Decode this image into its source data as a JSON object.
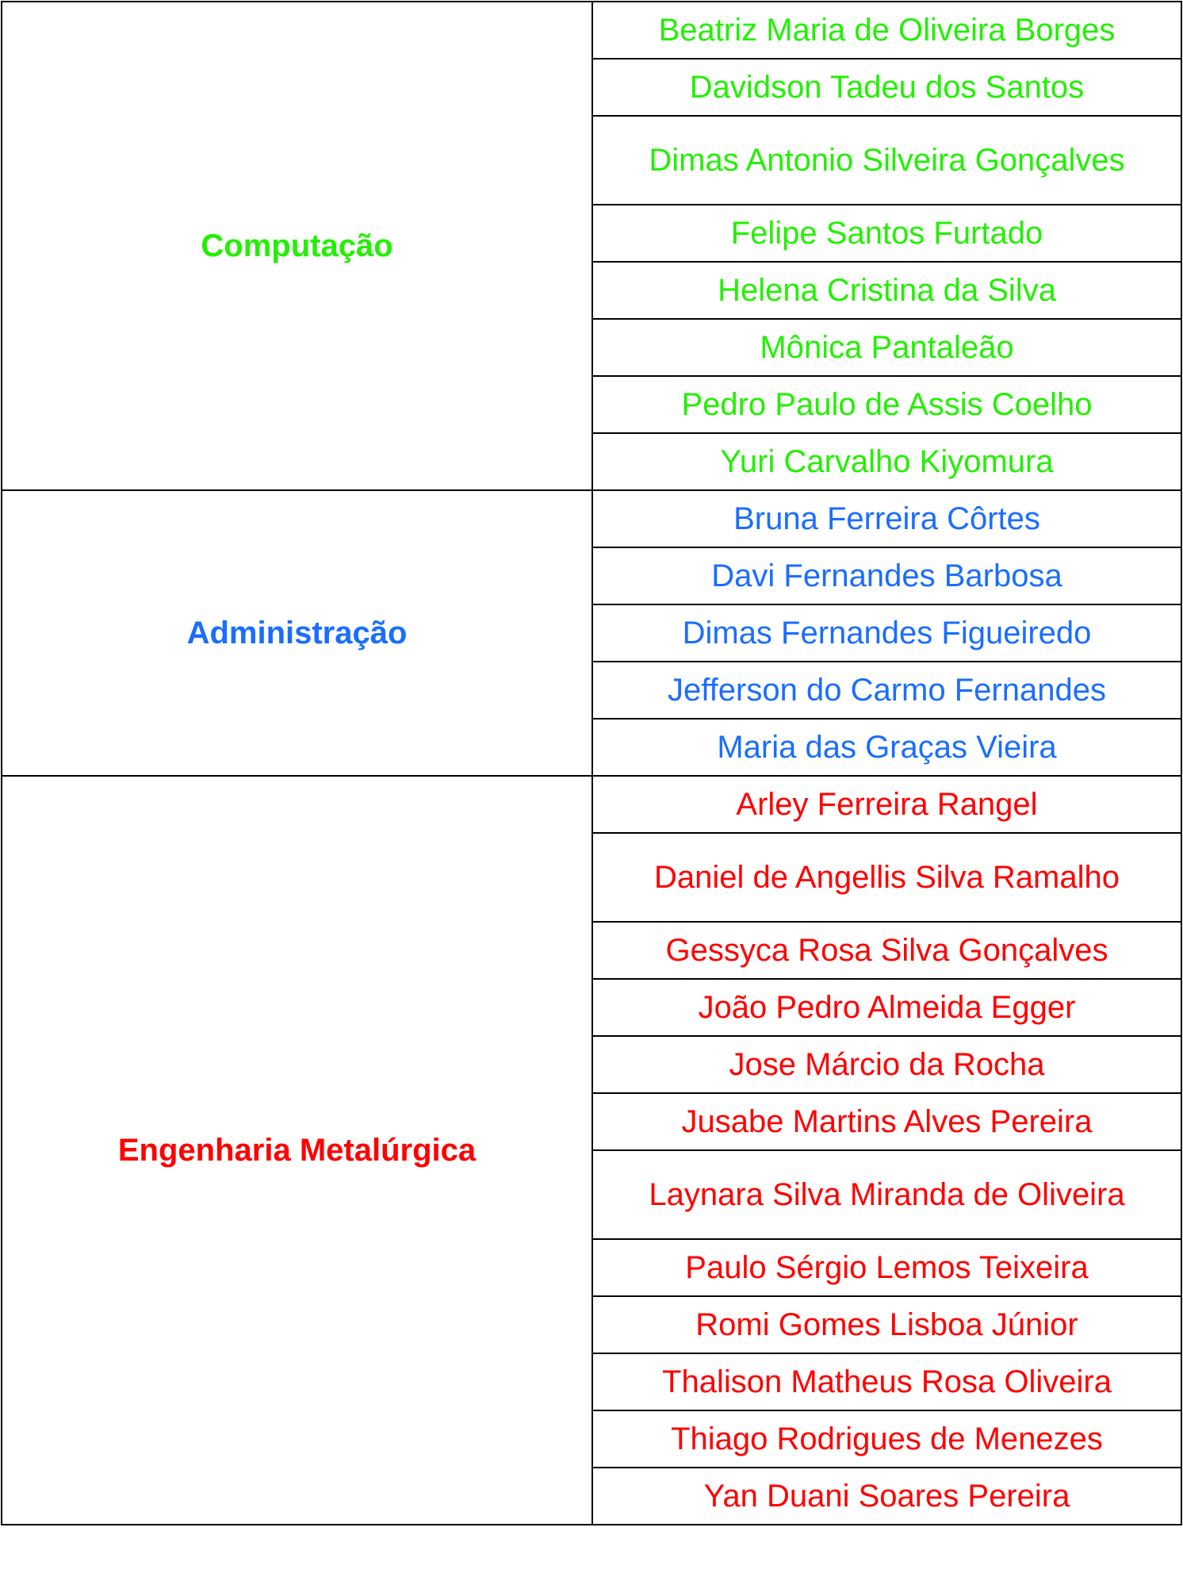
{
  "colors": {
    "Computação": "#22f000",
    "Administração": "#1a6dff",
    "Engenharia Metalúrgica": "#ff0000"
  },
  "groups": [
    {
      "name": "Computação",
      "color": "#22f000",
      "members": [
        "Beatriz Maria de Oliveira Borges",
        "Davidson Tadeu dos Santos",
        "Dimas Antonio Silveira Gonçalves",
        "Felipe Santos Furtado",
        "Helena Cristina da Silva",
        "Mônica Pantaleão",
        "Pedro Paulo de Assis Coelho",
        "Yuri Carvalho Kiyomura"
      ]
    },
    {
      "name": "Administração",
      "color": "#1a6dff",
      "members": [
        "Bruna Ferreira Côrtes",
        "Davi Fernandes Barbosa",
        "Dimas Fernandes Figueiredo",
        "Jefferson do Carmo Fernandes",
        "Maria das Graças Vieira"
      ]
    },
    {
      "name": "Engenharia Metalúrgica",
      "color": "#ff0000",
      "members": [
        "Arley Ferreira Rangel",
        "Daniel de Angellis Silva Ramalho",
        "Gessyca Rosa Silva Gonçalves",
        "João Pedro Almeida Egger",
        "Jose Márcio da Rocha",
        "Jusabe Martins Alves Pereira",
        "Laynara Silva Miranda de Oliveira",
        "Paulo Sérgio Lemos Teixeira",
        "Romi Gomes Lisboa Júnior",
        "Thalison Matheus Rosa Oliveira",
        "Thiago Rodrigues de Menezes",
        "Yan Duani Soares Pereira"
      ]
    }
  ]
}
